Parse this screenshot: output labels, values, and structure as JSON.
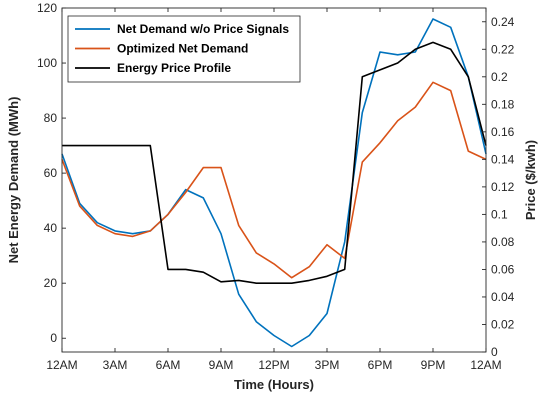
{
  "chart_data": {
    "type": "line",
    "xlabel": "Time (Hours)",
    "ylabel_left": "Net Energy Demand (MWh)",
    "ylabel_right": "Price ($/kwh)",
    "xlim": [
      0,
      24
    ],
    "ylim_left": [
      -5,
      120
    ],
    "ylim_right": [
      0,
      0.25
    ],
    "grid": false,
    "legend_position": "top-left",
    "x_ticks": [
      {
        "value": 0,
        "label": "12AM"
      },
      {
        "value": 3,
        "label": "3AM"
      },
      {
        "value": 6,
        "label": "6AM"
      },
      {
        "value": 9,
        "label": "9AM"
      },
      {
        "value": 12,
        "label": "12PM"
      },
      {
        "value": 15,
        "label": "3PM"
      },
      {
        "value": 18,
        "label": "6PM"
      },
      {
        "value": 21,
        "label": "9PM"
      },
      {
        "value": 24,
        "label": "12AM"
      }
    ],
    "y_ticks_left": [
      {
        "value": 0,
        "label": "0"
      },
      {
        "value": 20,
        "label": "20"
      },
      {
        "value": 40,
        "label": "40"
      },
      {
        "value": 60,
        "label": "60"
      },
      {
        "value": 80,
        "label": "80"
      },
      {
        "value": 100,
        "label": "100"
      },
      {
        "value": 120,
        "label": "120"
      }
    ],
    "y_ticks_right": [
      {
        "value": 0,
        "label": "0"
      },
      {
        "value": 0.02,
        "label": "0.02"
      },
      {
        "value": 0.04,
        "label": "0.04"
      },
      {
        "value": 0.06,
        "label": "0.06"
      },
      {
        "value": 0.08,
        "label": "0.08"
      },
      {
        "value": 0.1,
        "label": "0.1"
      },
      {
        "value": 0.12,
        "label": "0.12"
      },
      {
        "value": 0.14,
        "label": "0.14"
      },
      {
        "value": 0.16,
        "label": "0.16"
      },
      {
        "value": 0.18,
        "label": "0.18"
      },
      {
        "value": 0.2,
        "label": "0.2"
      },
      {
        "value": 0.22,
        "label": "0.22"
      },
      {
        "value": 0.24,
        "label": "0.24"
      }
    ],
    "series": [
      {
        "name": "Net Demand w/o Price Signals",
        "axis": "left",
        "color": "#0072BD",
        "x": [
          0,
          1,
          2,
          3,
          4,
          5,
          6,
          7,
          8,
          9,
          10,
          11,
          12,
          13,
          14,
          15,
          16,
          17,
          18,
          19,
          20,
          21,
          22,
          23,
          24
        ],
        "y": [
          67,
          49,
          42,
          39,
          38,
          39,
          45,
          54,
          51,
          38,
          16,
          6,
          1,
          -3,
          1,
          9,
          35,
          82,
          104,
          103,
          104,
          116,
          113,
          95,
          67
        ]
      },
      {
        "name": "Optimized Net Demand",
        "axis": "left",
        "color": "#D95319",
        "x": [
          0,
          1,
          2,
          3,
          4,
          5,
          6,
          7,
          8,
          9,
          10,
          11,
          12,
          13,
          14,
          15,
          16,
          17,
          18,
          19,
          20,
          21,
          22,
          23,
          24
        ],
        "y": [
          65,
          48,
          41,
          38,
          37,
          39,
          45,
          53,
          62,
          62,
          41,
          31,
          27,
          22,
          26,
          34,
          29,
          64,
          71,
          79,
          84,
          93,
          90,
          68,
          65
        ]
      },
      {
        "name": "Energy Price Profile",
        "axis": "right",
        "color": "#000000",
        "x": [
          0,
          1,
          2,
          3,
          4,
          5,
          6,
          7,
          8,
          9,
          10,
          11,
          12,
          13,
          14,
          15,
          16,
          17,
          18,
          19,
          20,
          21,
          22,
          23,
          24
        ],
        "y": [
          0.15,
          0.15,
          0.15,
          0.15,
          0.15,
          0.15,
          0.06,
          0.06,
          0.058,
          0.051,
          0.052,
          0.05,
          0.05,
          0.05,
          0.052,
          0.055,
          0.06,
          0.2,
          0.205,
          0.21,
          0.22,
          0.225,
          0.22,
          0.2,
          0.15
        ]
      }
    ]
  }
}
